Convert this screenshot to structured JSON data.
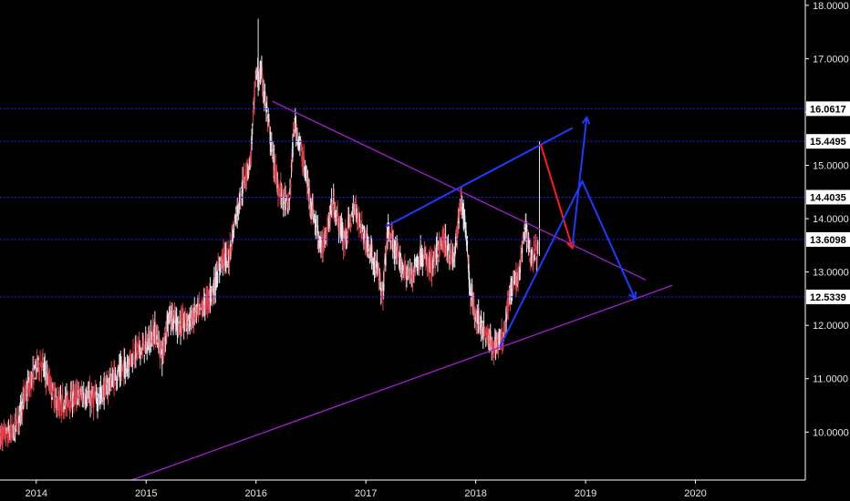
{
  "chart_data": {
    "type": "line",
    "title": "",
    "xlabel": "",
    "ylabel": "",
    "x_ticks": [
      "2014",
      "2015",
      "2016",
      "2017",
      "2018",
      "2019",
      "2020"
    ],
    "y_ticks": [
      "10.0000",
      "11.0000",
      "12.0000",
      "13.0000",
      "14.0000",
      "15.0000",
      "16.0000",
      "17.0000",
      "18.0000"
    ],
    "xlim": [
      2013.67,
      2021.0
    ],
    "ylim": [
      9.1,
      18.1
    ],
    "grid": false,
    "legend": "none",
    "colors": {
      "background": "#000000",
      "candle_up": "#e6e6f0",
      "candle_down": "#e0404a",
      "level": "#1a1aff",
      "trend": "#a020d0",
      "arrow_blue": "#1a3cff",
      "arrow_red": "#ff1a1a",
      "axis": "#ffffff",
      "label_bg": "#ffffff"
    },
    "horizontal_levels": [
      {
        "value": 16.0617,
        "label": "16.0617"
      },
      {
        "value": 15.4495,
        "label": "15.4495"
      },
      {
        "value": 14.4035,
        "label": "14.4035"
      },
      {
        "value": 13.6098,
        "label": "13.6098"
      },
      {
        "value": 12.5339,
        "label": "12.5339"
      }
    ],
    "trend_lines": [
      {
        "from": [
          2016.15,
          16.2
        ],
        "to": [
          2019.55,
          12.85
        ]
      },
      {
        "from": [
          2014.87,
          9.1
        ],
        "to": [
          2019.79,
          12.75
        ]
      }
    ],
    "annotation_lines": [
      {
        "color": "arrow_blue",
        "points": [
          [
            2017.18,
            13.85
          ],
          [
            2018.88,
            15.7
          ]
        ]
      }
    ],
    "arrows": [
      {
        "color": "arrow_red",
        "points": [
          [
            2018.59,
            15.4
          ],
          [
            2018.88,
            13.45
          ]
        ]
      },
      {
        "color": "arrow_blue",
        "points": [
          [
            2018.22,
            11.6
          ],
          [
            2018.97,
            14.7
          ],
          [
            2019.45,
            12.5
          ]
        ]
      },
      {
        "color": "arrow_blue",
        "points": [
          [
            2018.88,
            13.5
          ],
          [
            2019.01,
            15.9
          ]
        ]
      }
    ],
    "price_path": [
      [
        2013.67,
        9.9
      ],
      [
        2013.8,
        10.0
      ],
      [
        2013.9,
        10.7
      ],
      [
        2014.0,
        11.2
      ],
      [
        2014.05,
        11.3
      ],
      [
        2014.1,
        11.0
      ],
      [
        2014.2,
        10.5
      ],
      [
        2014.3,
        10.6
      ],
      [
        2014.4,
        10.7
      ],
      [
        2014.55,
        10.6
      ],
      [
        2014.7,
        11.0
      ],
      [
        2014.8,
        11.2
      ],
      [
        2014.9,
        11.5
      ],
      [
        2015.0,
        11.6
      ],
      [
        2015.08,
        11.9
      ],
      [
        2015.15,
        11.4
      ],
      [
        2015.2,
        12.2
      ],
      [
        2015.3,
        12.0
      ],
      [
        2015.4,
        12.1
      ],
      [
        2015.5,
        12.3
      ],
      [
        2015.6,
        12.6
      ],
      [
        2015.7,
        13.3
      ],
      [
        2015.75,
        13.2
      ],
      [
        2015.8,
        13.9
      ],
      [
        2015.9,
        14.8
      ],
      [
        2015.95,
        15.1
      ],
      [
        2016.0,
        16.7
      ],
      [
        2016.05,
        16.7
      ],
      [
        2016.1,
        16.0
      ],
      [
        2016.15,
        15.2
      ],
      [
        2016.2,
        14.6
      ],
      [
        2016.3,
        14.2
      ],
      [
        2016.35,
        15.8
      ],
      [
        2016.4,
        15.4
      ],
      [
        2016.5,
        14.3
      ],
      [
        2016.6,
        13.4
      ],
      [
        2016.7,
        14.3
      ],
      [
        2016.8,
        13.6
      ],
      [
        2016.9,
        14.2
      ],
      [
        2017.0,
        13.6
      ],
      [
        2017.1,
        13.1
      ],
      [
        2017.15,
        12.5
      ],
      [
        2017.2,
        13.8
      ],
      [
        2017.3,
        13.2
      ],
      [
        2017.4,
        12.9
      ],
      [
        2017.5,
        13.3
      ],
      [
        2017.6,
        13.1
      ],
      [
        2017.7,
        13.6
      ],
      [
        2017.8,
        13.2
      ],
      [
        2017.87,
        14.4
      ],
      [
        2017.92,
        13.6
      ],
      [
        2017.95,
        12.6
      ],
      [
        2018.0,
        12.2
      ],
      [
        2018.1,
        11.8
      ],
      [
        2018.15,
        11.6
      ],
      [
        2018.2,
        11.7
      ],
      [
        2018.25,
        11.8
      ],
      [
        2018.3,
        12.5
      ],
      [
        2018.4,
        13.0
      ],
      [
        2018.45,
        13.9
      ],
      [
        2018.5,
        13.3
      ],
      [
        2018.57,
        13.4
      ]
    ]
  }
}
